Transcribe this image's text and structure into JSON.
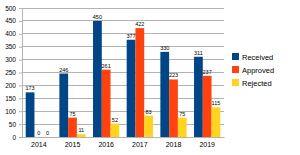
{
  "chart_data": {
    "type": "bar",
    "categories": [
      "2014",
      "2015",
      "2016",
      "2017",
      "2018",
      "2019"
    ],
    "series": [
      {
        "name": "Received",
        "color": "#004586",
        "values": [
          173,
          246,
          450,
          377,
          330,
          311
        ]
      },
      {
        "name": "Approved",
        "color": "#ff420e",
        "values": [
          0,
          75,
          261,
          422,
          223,
          237
        ]
      },
      {
        "name": "Rejected",
        "color": "#ffd320",
        "values": [
          0,
          11,
          52,
          83,
          75,
          115
        ]
      }
    ],
    "ylim": [
      0,
      500
    ],
    "yticks": [
      0,
      50,
      100,
      150,
      200,
      250,
      300,
      350,
      400,
      450,
      500
    ],
    "grid": true,
    "legend": "right",
    "data_labels": true
  }
}
